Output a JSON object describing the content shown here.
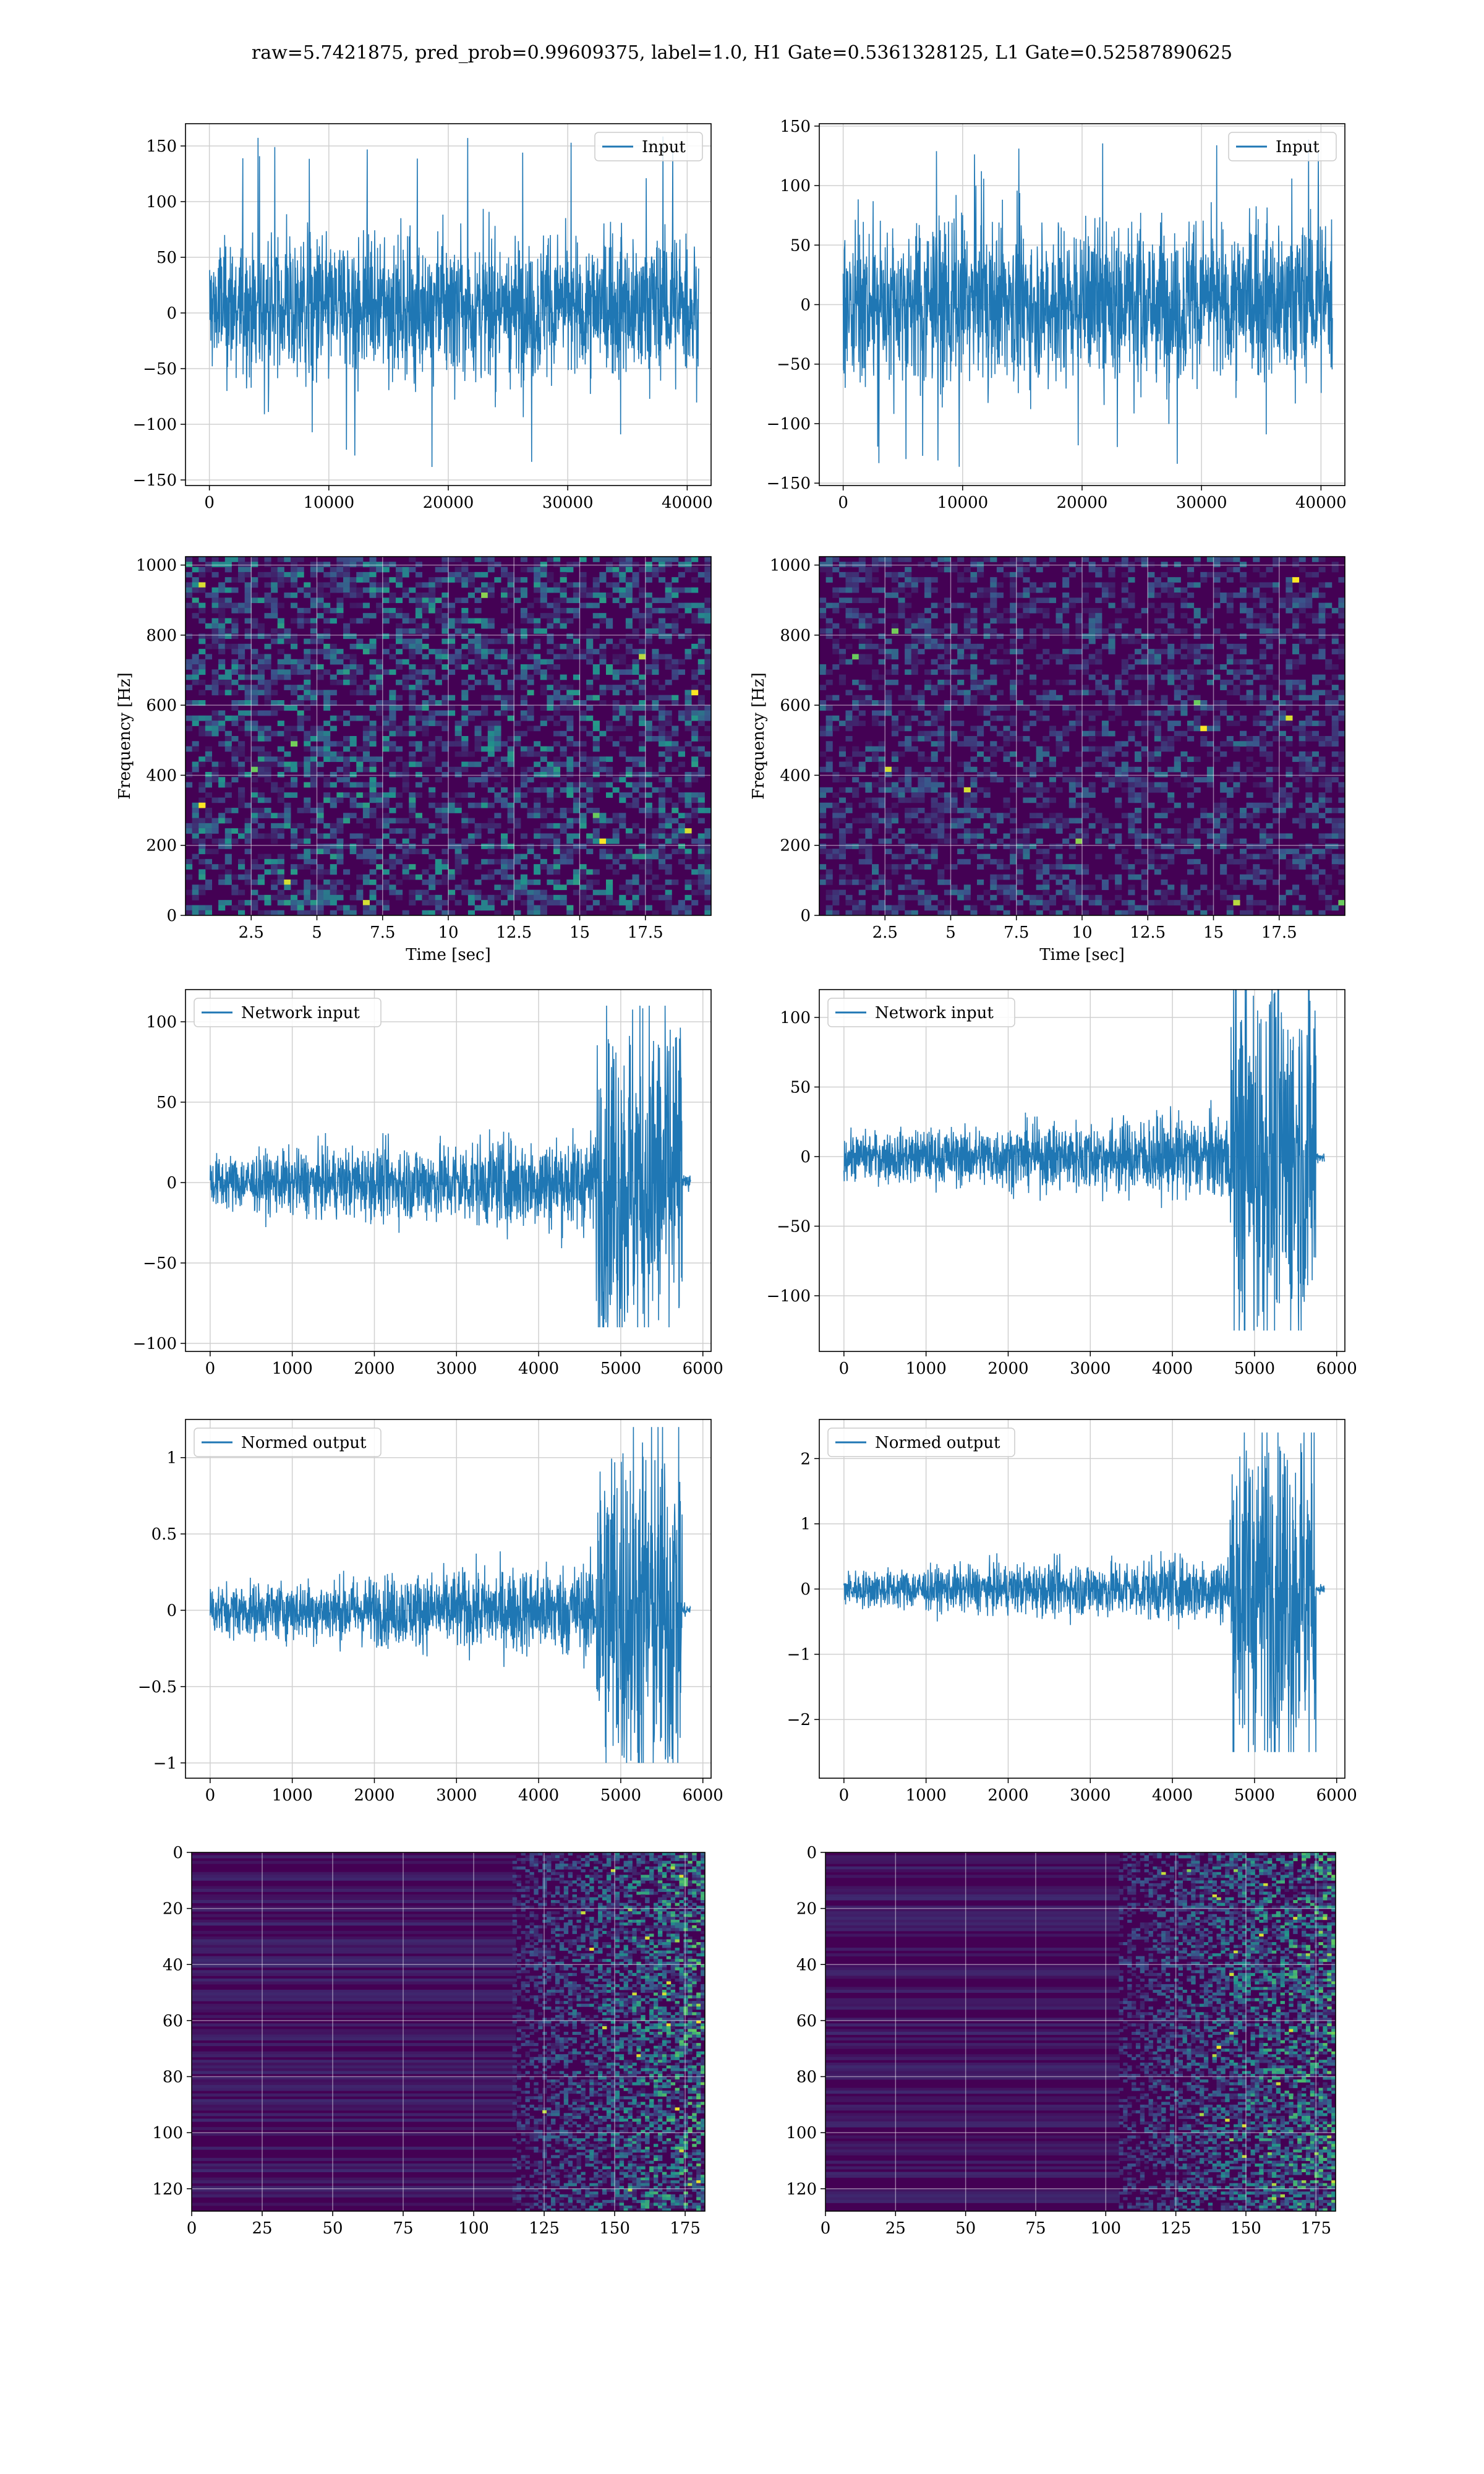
{
  "figure_title": "raw=5.7421875, pred_prob=0.99609375, label=1.0, H1 Gate=0.5361328125, L1 Gate=0.52587890625",
  "colors": {
    "series": "#1f77b4",
    "grid": "#d0d0d0",
    "viridis_low": "#440154",
    "viridis_high": "#fde725"
  },
  "chart_data": [
    {
      "type": "line",
      "title": "",
      "series": [
        {
          "name": "Input"
        }
      ],
      "legend": "upper right",
      "grid": true,
      "xlim": [
        -2000,
        42000
      ],
      "ylim": [
        -155,
        170
      ],
      "xticks": [
        0,
        10000,
        20000,
        30000,
        40000
      ],
      "yticks": [
        -150,
        -100,
        -50,
        0,
        50,
        100,
        150
      ],
      "n_points": 40960,
      "envelope": {
        "core": [
          -55,
          65
        ],
        "max": 160,
        "min": -140
      }
    },
    {
      "type": "line",
      "title": "",
      "series": [
        {
          "name": "Input"
        }
      ],
      "legend": "upper right",
      "grid": true,
      "xlim": [
        -2000,
        42000
      ],
      "ylim": [
        -152,
        152
      ],
      "xticks": [
        0,
        10000,
        20000,
        30000,
        40000
      ],
      "yticks": [
        -150,
        -100,
        -50,
        0,
        50,
        100,
        150
      ],
      "n_points": 40960,
      "envelope": {
        "core": [
          -60,
          65
        ],
        "max": 140,
        "min": -140
      }
    },
    {
      "type": "heatmap",
      "title": "",
      "xlabel": "Time [sec]",
      "ylabel": "Frequency [Hz]",
      "xlim": [
        0,
        20
      ],
      "ylim": [
        0,
        1024
      ],
      "xticks": [
        2.5,
        5.0,
        7.5,
        10.0,
        12.5,
        15.0,
        17.5
      ],
      "yticks": [
        0,
        200,
        400,
        600,
        800,
        1000
      ],
      "colormap": "viridis",
      "grid": true
    },
    {
      "type": "heatmap",
      "title": "",
      "xlabel": "Time [sec]",
      "ylabel": "Frequency [Hz]",
      "xlim": [
        0,
        20
      ],
      "ylim": [
        0,
        1024
      ],
      "xticks": [
        2.5,
        5.0,
        7.5,
        10.0,
        12.5,
        15.0,
        17.5
      ],
      "yticks": [
        0,
        200,
        400,
        600,
        800,
        1000
      ],
      "colormap": "viridis",
      "grid": true
    },
    {
      "type": "line",
      "title": "",
      "series": [
        {
          "name": "Network input"
        }
      ],
      "legend": "upper left",
      "grid": true,
      "xlim": [
        -300,
        6100
      ],
      "ylim": [
        -105,
        120
      ],
      "xticks": [
        0,
        1000,
        2000,
        3000,
        4000,
        5000,
        6000
      ],
      "yticks": [
        -100,
        -50,
        0,
        50,
        100
      ],
      "n_points": 5800,
      "envelope": {
        "early": [
          -15,
          15
        ],
        "burst_start": 4700,
        "burst": [
          -90,
          110
        ],
        "end": 5750
      }
    },
    {
      "type": "line",
      "title": "",
      "series": [
        {
          "name": "Network input"
        }
      ],
      "legend": "upper left",
      "grid": true,
      "xlim": [
        -300,
        6100
      ],
      "ylim": [
        -140,
        120
      ],
      "xticks": [
        0,
        1000,
        2000,
        3000,
        4000,
        5000,
        6000
      ],
      "yticks": [
        -100,
        -50,
        0,
        50,
        100
      ],
      "n_points": 5800,
      "envelope": {
        "early": [
          -15,
          15
        ],
        "burst_start": 4700,
        "burst": [
          -125,
          120
        ],
        "end": 5750
      }
    },
    {
      "type": "line",
      "title": "",
      "series": [
        {
          "name": "Normed output"
        }
      ],
      "legend": "upper left",
      "grid": true,
      "xlim": [
        -300,
        6100
      ],
      "ylim": [
        -1.1,
        1.25
      ],
      "xticks": [
        0,
        1000,
        2000,
        3000,
        4000,
        5000,
        6000
      ],
      "yticks": [
        -1.0,
        -0.5,
        0.0,
        0.5,
        1.0
      ],
      "n_points": 5800,
      "envelope": {
        "early": [
          -0.15,
          0.15
        ],
        "burst_start": 4700,
        "burst": [
          -1.0,
          1.2
        ],
        "end": 5750
      }
    },
    {
      "type": "line",
      "title": "",
      "series": [
        {
          "name": "Normed output"
        }
      ],
      "legend": "upper left",
      "grid": true,
      "xlim": [
        -300,
        6100
      ],
      "ylim": [
        -2.9,
        2.6
      ],
      "xticks": [
        0,
        1000,
        2000,
        3000,
        4000,
        5000,
        6000
      ],
      "yticks": [
        -2,
        -1,
        0,
        1,
        2
      ],
      "n_points": 5800,
      "envelope": {
        "early": [
          -0.25,
          0.25
        ],
        "burst_start": 4700,
        "burst": [
          -2.5,
          2.4
        ],
        "end": 5750
      }
    },
    {
      "type": "heatmap",
      "title": "",
      "xlim": [
        0,
        182
      ],
      "ylim": [
        128,
        0
      ],
      "xticks": [
        0,
        25,
        50,
        75,
        100,
        125,
        150,
        175
      ],
      "yticks": [
        0,
        20,
        40,
        60,
        80,
        100,
        120
      ],
      "colormap": "viridis",
      "grid": true,
      "active_from": 115
    },
    {
      "type": "heatmap",
      "title": "",
      "xlim": [
        0,
        182
      ],
      "ylim": [
        128,
        0
      ],
      "xticks": [
        0,
        25,
        50,
        75,
        100,
        125,
        150,
        175
      ],
      "yticks": [
        0,
        20,
        40,
        60,
        80,
        100,
        120
      ],
      "colormap": "viridis",
      "grid": true,
      "active_from": 105
    }
  ]
}
